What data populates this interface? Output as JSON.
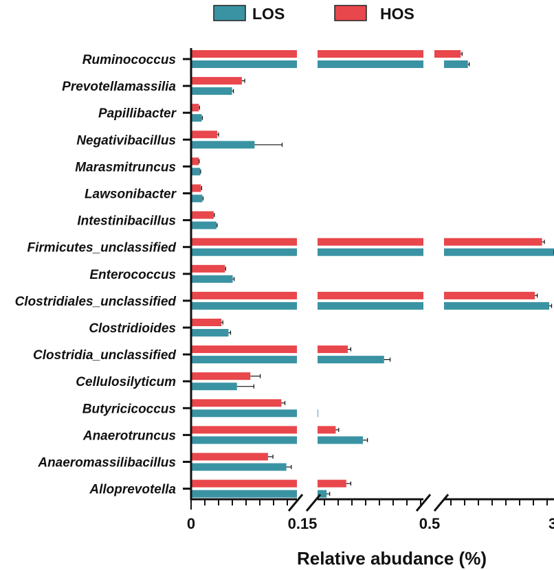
{
  "chart_data": {
    "type": "bar",
    "orientation": "horizontal",
    "title": "",
    "xlabel": "Relative abudance (%)",
    "ylabel": "",
    "x_tick_labels": [
      "0",
      "0.15",
      "0.5",
      "3"
    ],
    "x_axis_breaks": true,
    "legend": {
      "position": "top",
      "entries": [
        "LOS",
        "HOS"
      ]
    },
    "colors": {
      "LOS": "#3a93a3",
      "HOS": "#e8474c"
    },
    "categories": [
      "Ruminococcus",
      "Prevotellamassilia",
      "Papillibacter",
      "Negativibacillus",
      "Marasmitruncus",
      "Lawsonibacter",
      "Intestinibacillus",
      "Firmicutes_unclassified",
      "Enterococcus",
      "Clostridiales_unclassified",
      "Clostridioides",
      "Clostridia_unclassified",
      "Cellulosilyticum",
      "Butyricicoccus",
      "Anaerotruncus",
      "Anaeromassilibacillus",
      "Alloprevotella"
    ],
    "series": [
      {
        "name": "HOS",
        "values": [
          1.05,
          0.072,
          0.011,
          0.037,
          0.011,
          0.014,
          0.032,
          2.75,
          0.048,
          2.6,
          0.043,
          0.25,
          0.084,
          0.128,
          0.21,
          0.109,
          0.245
        ],
        "errors": [
          0.03,
          0.004,
          0.001,
          0.002,
          0.0005,
          0.001,
          0.001,
          0.05,
          0.001,
          0.05,
          0.002,
          0.01,
          0.014,
          0.005,
          0.01,
          0.007,
          0.015
        ]
      },
      {
        "name": "LOS",
        "values": [
          1.2,
          0.058,
          0.015,
          0.09,
          0.013,
          0.016,
          0.036,
          3.0,
          0.059,
          2.9,
          0.053,
          0.37,
          0.065,
          0.152,
          0.3,
          0.135,
          0.18
        ],
        "errors": [
          0.03,
          0.002,
          0.001,
          0.039,
          0.0005,
          0.001,
          0.001,
          0.05,
          0.002,
          0.05,
          0.003,
          0.02,
          0.024,
          0.0,
          0.015,
          0.007,
          0.01
        ]
      }
    ]
  }
}
